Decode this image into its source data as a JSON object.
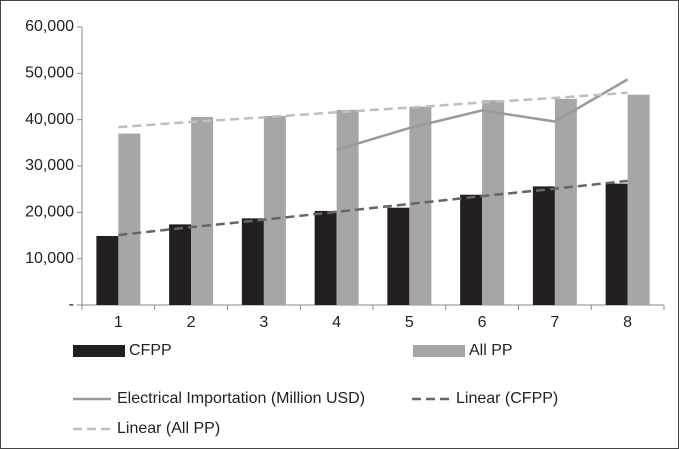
{
  "chart_data": {
    "type": "bar",
    "categories": [
      "1",
      "2",
      "3",
      "4",
      "5",
      "6",
      "7",
      "8"
    ],
    "series": [
      {
        "name": "CFPP",
        "kind": "bar",
        "color": "#231f20",
        "values": [
          14900,
          17400,
          18700,
          20300,
          21000,
          23800,
          25600,
          26200
        ]
      },
      {
        "name": "All PP",
        "kind": "bar",
        "color": "#a6a6a6",
        "values": [
          37000,
          40600,
          40800,
          42100,
          42800,
          44200,
          44500,
          45400
        ]
      },
      {
        "name": "Electrical Importation (Million USD)",
        "kind": "line",
        "dashed": false,
        "color": "#9a9a9a",
        "values": [
          null,
          null,
          null,
          33500,
          38200,
          42000,
          39600,
          48700
        ]
      },
      {
        "name": "Linear (CFPP)",
        "kind": "line",
        "dashed": true,
        "color": "#666666",
        "values": [
          15100,
          16800,
          18400,
          20100,
          21800,
          23500,
          25100,
          26800
        ]
      },
      {
        "name": "Linear (All PP)",
        "kind": "line",
        "dashed": true,
        "color": "#bfbfbf",
        "values": [
          38400,
          39500,
          40500,
          41600,
          42600,
          43700,
          44700,
          45800
        ]
      }
    ],
    "ylim": [
      0,
      60000
    ],
    "yticks": [
      {
        "value": 0,
        "label": "-"
      },
      {
        "value": 10000,
        "label": "10,000"
      },
      {
        "value": 20000,
        "label": "20,000"
      },
      {
        "value": 30000,
        "label": "30,000"
      },
      {
        "value": 40000,
        "label": "40,000"
      },
      {
        "value": 50000,
        "label": "50,000"
      },
      {
        "value": 60000,
        "label": "60,000"
      }
    ],
    "grid": false
  }
}
